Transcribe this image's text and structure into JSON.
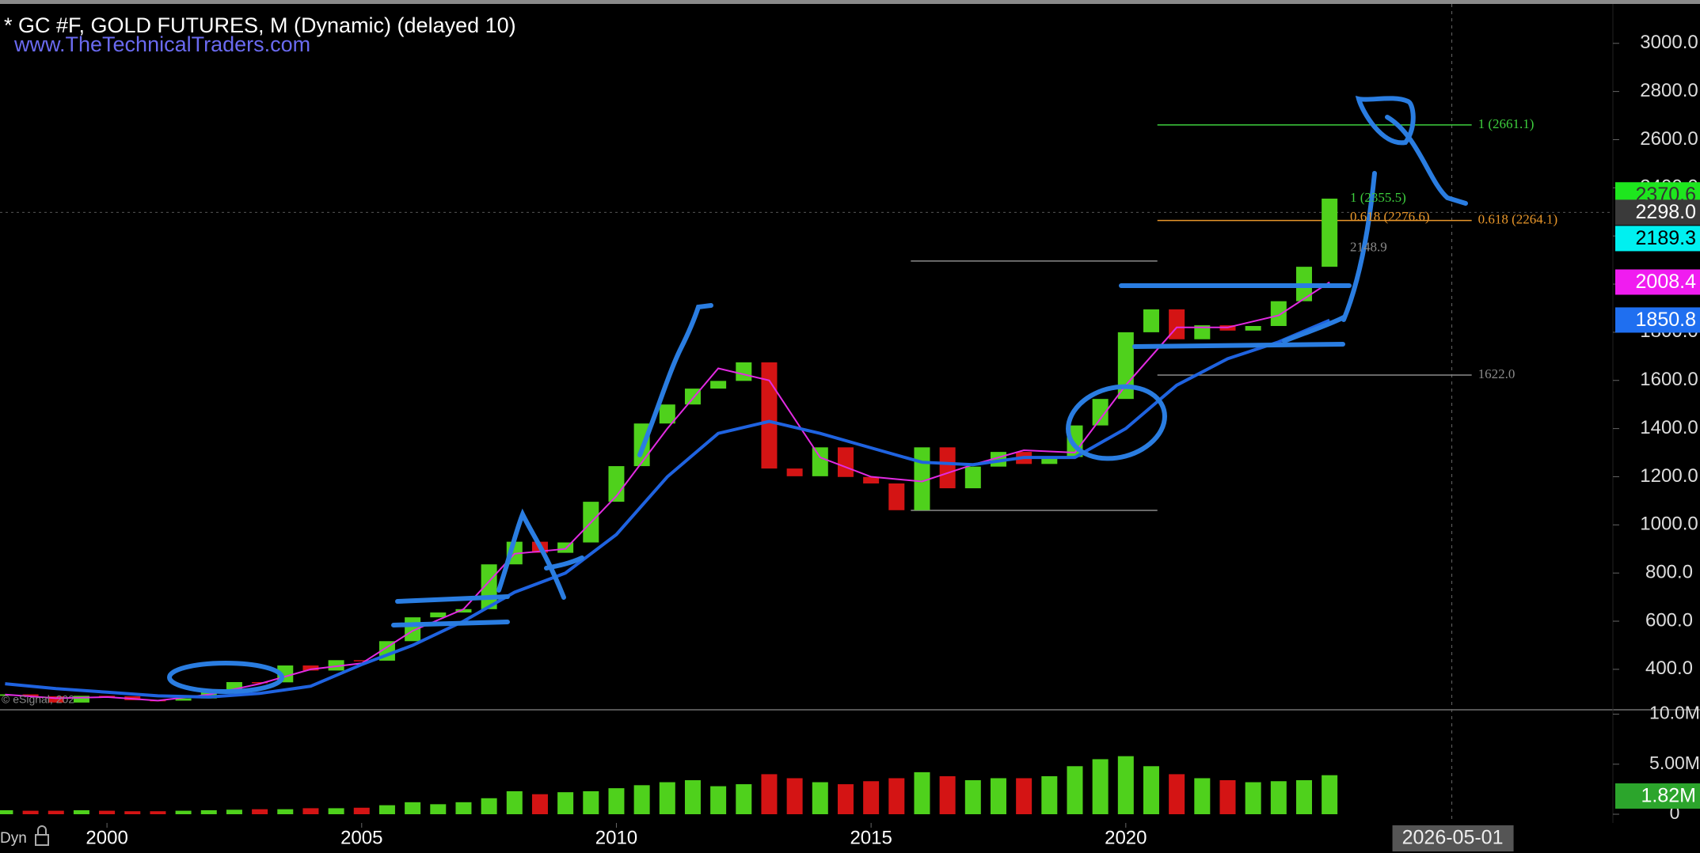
{
  "header": {
    "title": "* GC #F, GOLD FUTURES, M (Dynamic) (delayed 10)",
    "website": "www.TheTechnicalTraders.com",
    "copyright": "© eSignal, 202",
    "mode": "Dyn"
  },
  "chart_data": [
    {
      "type": "candlestick",
      "x": [
        1998,
        1998.5,
        1999,
        1999.5,
        2000,
        2000.5,
        2001,
        2001.5,
        2002,
        2002.5,
        2003,
        2003.5,
        2004,
        2004.5,
        2005,
        2005.5,
        2006,
        2006.5,
        2007,
        2007.5,
        2008,
        2008.5,
        2009,
        2009.5,
        2010,
        2010.5,
        2011,
        2011.5,
        2012,
        2012.5,
        2013,
        2013.5,
        2014,
        2014.5,
        2015,
        2015.5,
        2016,
        2016.5,
        2017,
        2017.5,
        2018,
        2018.5,
        2019,
        2019.5,
        2020,
        2020.5,
        2021,
        2021.5,
        2022,
        2022.5,
        2023,
        2023.5,
        2024
      ],
      "open": [
        290,
        296,
        288,
        262,
        290,
        288,
        272,
        270,
        279,
        314,
        347,
        346,
        416,
        395,
        438,
        436,
        517,
        616,
        636,
        650,
        836,
        930,
        884,
        927,
        1096,
        1244,
        1421,
        1500,
        1566,
        1598,
        1675,
        1234,
        1202,
        1322,
        1199,
        1172,
        1061,
        1322,
        1152,
        1242,
        1303,
        1253,
        1282,
        1413,
        1523,
        1800,
        1895,
        1771,
        1829,
        1807,
        1826,
        1929,
        2072
      ],
      "close": [
        296,
        288,
        262,
        290,
        288,
        272,
        270,
        279,
        314,
        347,
        346,
        416,
        395,
        438,
        436,
        517,
        616,
        636,
        650,
        836,
        930,
        884,
        927,
        1096,
        1244,
        1421,
        1500,
        1566,
        1598,
        1675,
        1234,
        1202,
        1322,
        1199,
        1172,
        1061,
        1322,
        1152,
        1242,
        1303,
        1253,
        1282,
        1413,
        1523,
        1800,
        1895,
        1771,
        1829,
        1807,
        1826,
        1929,
        2072,
        2355
      ],
      "up_color": "#4fd11c",
      "down_color": "#d41414",
      "xlim": [
        1997.9,
        2029.5
      ],
      "xticks": [
        2000,
        2005,
        2010,
        2015,
        2020
      ],
      "ylim": [
        232,
        3157
      ],
      "yticks": [
        {
          "value": 400,
          "label": "400.0"
        },
        {
          "value": 600,
          "label": "600.0"
        },
        {
          "value": 800,
          "label": "800.0"
        },
        {
          "value": 1000,
          "label": "1000.0"
        },
        {
          "value": 1200,
          "label": "1200.0"
        },
        {
          "value": 1400,
          "label": "1400.0"
        },
        {
          "value": 1600,
          "label": "1600.0"
        },
        {
          "value": 1800,
          "label": "1800.0"
        },
        {
          "value": 2000,
          "label": "2000.0"
        },
        {
          "value": 2200,
          "label": "2200.0"
        },
        {
          "value": 2400,
          "label": "2400.0"
        },
        {
          "value": 2600,
          "label": "2600.0"
        },
        {
          "value": 2800,
          "label": "2800.0"
        },
        {
          "value": 3000,
          "label": "3000.0"
        }
      ],
      "series": [
        {
          "color": "#e22be2",
          "x": [
            1998,
            1999,
            2000,
            2001,
            2002,
            2003,
            2004,
            2005,
            2006,
            2007,
            2008,
            2009,
            2010,
            2011,
            2012,
            2013,
            2014,
            2015,
            2016,
            2017,
            2018,
            2019,
            2020,
            2021,
            2022,
            2023,
            2024
          ],
          "values": [
            295,
            280,
            285,
            270,
            295,
            340,
            400,
            425,
            560,
            650,
            880,
            900,
            1120,
            1400,
            1650,
            1600,
            1280,
            1200,
            1180,
            1250,
            1310,
            1300,
            1580,
            1820,
            1820,
            1870,
            2008
          ]
        },
        {
          "color": "#1f63e0",
          "x": [
            1998,
            1999,
            2000,
            2001,
            2002,
            2003,
            2004,
            2005,
            2006,
            2007,
            2008,
            2009,
            2010,
            2011,
            2012,
            2013,
            2014,
            2015,
            2016,
            2017,
            2018,
            2019,
            2020,
            2021,
            2022,
            2023,
            2024
          ],
          "values": [
            340,
            320,
            305,
            290,
            285,
            300,
            330,
            420,
            500,
            600,
            720,
            800,
            960,
            1200,
            1380,
            1430,
            1380,
            1320,
            1260,
            1250,
            1280,
            1280,
            1400,
            1580,
            1690,
            1760,
            1850
          ]
        }
      ],
      "tags": [
        {
          "value": 2370.6,
          "color": "#1ee61e",
          "text_color": "#333333"
        },
        {
          "value": 2298,
          "label": "2298.0",
          "color": "#3a3a3a",
          "text_color": "#ffffff"
        },
        {
          "value": 2189.3,
          "color": "#00f0f0",
          "text_color": "#000000"
        },
        {
          "value": 2008.4,
          "color": "#f01cf0",
          "text_color": "#ffffff"
        },
        {
          "value": 1850.8,
          "color": "#1f6ff0",
          "text_color": "#ffffff"
        }
      ],
      "annotations": [
        {
          "label": "1 (2661.1)",
          "value": 2661.1,
          "color": "#3ecf3e",
          "x": [
            2020.62,
            2026.79
          ]
        },
        {
          "label": "1 (2355.5)",
          "value": 2355.5,
          "color": "#3ecf3e"
        },
        {
          "label": "0.618 (2276.6)",
          "value": 2276.6,
          "color": "#e8962a"
        },
        {
          "label": "0.618 (2264.1)",
          "value": 2264.1,
          "color": "#e8962a",
          "x": [
            2020.62,
            2026.79
          ]
        },
        {
          "label": "2148.9",
          "value": 2148.9,
          "color": "#8a8a8a"
        },
        {
          "label": "1622.0",
          "value": 1622,
          "color": "#8a8a8a",
          "x": [
            2020.62,
            2026.79
          ]
        },
        {
          "value": 2096,
          "color": "#8a8a8a",
          "x": [
            2015.78,
            2020.62
          ]
        },
        {
          "value": 1060,
          "color": "#8a8a8a",
          "x": [
            2015.78,
            2020.62
          ]
        }
      ],
      "cursor": {
        "date": "2026-05-01",
        "x": 2026.4,
        "value": 2298
      }
    },
    {
      "type": "bar",
      "values": [
        0.4,
        0.35,
        0.35,
        0.4,
        0.35,
        0.3,
        0.3,
        0.35,
        0.4,
        0.45,
        0.5,
        0.5,
        0.6,
        0.6,
        0.65,
        0.9,
        1.2,
        1.0,
        1.2,
        1.6,
        2.3,
        2.0,
        2.2,
        2.3,
        2.6,
        2.9,
        3.2,
        3.4,
        2.8,
        3.0,
        4.0,
        3.6,
        3.2,
        3.0,
        3.3,
        3.6,
        4.2,
        3.8,
        3.4,
        3.6,
        3.6,
        3.8,
        4.8,
        5.5,
        5.8,
        4.8,
        4.0,
        3.6,
        3.4,
        3.2,
        3.3,
        3.4,
        3.9
      ],
      "ylim": [
        0,
        10.2
      ],
      "yticks": [
        {
          "value": 10,
          "label": "10.0M"
        },
        {
          "value": 5,
          "label": "5.00M"
        },
        0
      ],
      "tags": [
        {
          "value": 1.82,
          "label": "1.82M",
          "color": "#2ca52c",
          "text_color": "#ffffff"
        }
      ]
    }
  ]
}
